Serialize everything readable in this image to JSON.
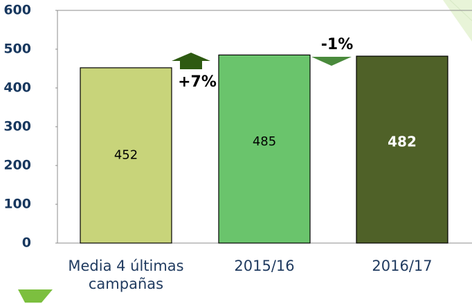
{
  "chart_data": {
    "type": "bar",
    "categories": [
      "Media 4 últimas campañas",
      "2015/16",
      "2016/17"
    ],
    "values": [
      452,
      485,
      482
    ],
    "colors": [
      "#c8d47a",
      "#6ac46c",
      "#4f6128"
    ],
    "label_colors": [
      "#000000",
      "#000000",
      "#ffffff"
    ],
    "ylim": [
      0,
      600
    ],
    "yticks": [
      0,
      100,
      200,
      300,
      400,
      500,
      600
    ],
    "grid": false,
    "annotations": [
      "+7%",
      "-1%"
    ]
  }
}
